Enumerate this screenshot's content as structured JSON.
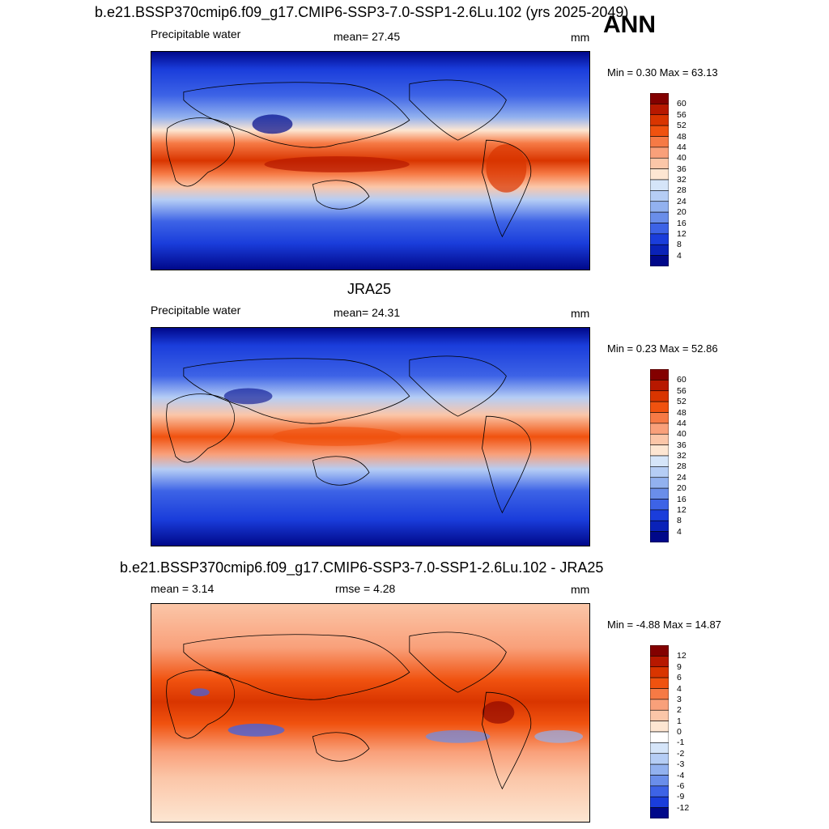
{
  "header": {
    "main_title": "b.e21.BSSP370cmip6.f09_g17.CMIP6-SSP3-7.0-SSP1-2.6Lu.102 (yrs 2025-2049)",
    "season": "ANN"
  },
  "panels": [
    {
      "title": "",
      "left_label": "Precipitable water",
      "center_label": "mean=  27.45",
      "units": "mm",
      "minmax": "Min =   0.30 Max =  63.13",
      "scale": "abs"
    },
    {
      "title": "JRA25",
      "left_label": "Precipitable water",
      "center_label": "mean=  24.31",
      "units": "mm",
      "minmax": "Min =   0.23 Max =  52.86",
      "scale": "abs"
    },
    {
      "title": "b.e21.BSSP370cmip6.f09_g17.CMIP6-SSP3-7.0-SSP1-2.6Lu.102 - JRA25",
      "left_label": "mean =   3.14",
      "center_label": "rmse =   4.28",
      "units": "mm",
      "minmax": "Min =  -4.88 Max =  14.87",
      "scale": "diff"
    }
  ],
  "colorbars": {
    "abs": {
      "labels": [
        "60",
        "56",
        "52",
        "48",
        "44",
        "40",
        "36",
        "32",
        "28",
        "24",
        "20",
        "16",
        "12",
        "8",
        "4"
      ],
      "colors": [
        "#830000",
        "#b71800",
        "#d93500",
        "#f0520f",
        "#f67a45",
        "#f9a07a",
        "#fbc6a8",
        "#fde6d2",
        "#d5e5f9",
        "#b5cdf5",
        "#92b1ef",
        "#6a8eea",
        "#3d63e6",
        "#1a3ddb",
        "#0a22b8",
        "#00088a"
      ]
    },
    "diff": {
      "labels": [
        "12",
        "9",
        "6",
        "4",
        "3",
        "2",
        "1",
        "0",
        "-1",
        "-2",
        "-3",
        "-4",
        "-6",
        "-9",
        "-12"
      ],
      "colors": [
        "#830000",
        "#b71800",
        "#d93500",
        "#f0520f",
        "#f67a45",
        "#f9a07a",
        "#fbc6a8",
        "#fde6d2",
        "#ffffff",
        "#d5e5f9",
        "#b5cdf5",
        "#92b1ef",
        "#6a8eea",
        "#3d63e6",
        "#1a3ddb",
        "#00088a"
      ]
    }
  }
}
